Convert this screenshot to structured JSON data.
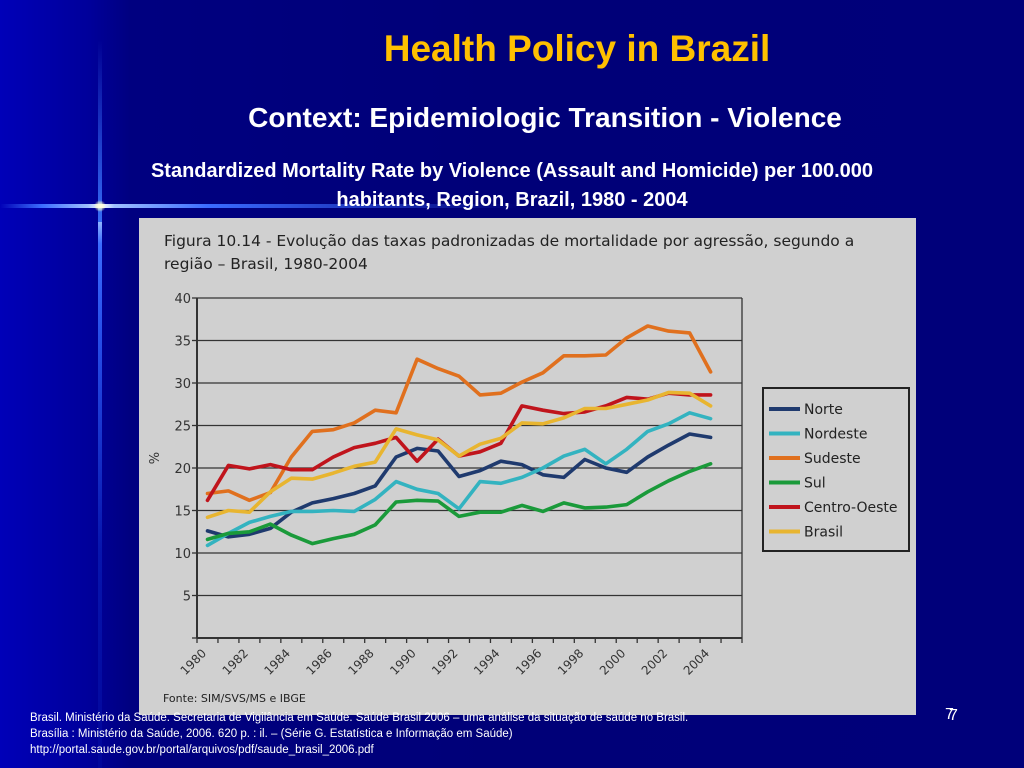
{
  "slide": {
    "title": "Health Policy in Brazil",
    "subtitle": "Context: Epidemiologic Transition - Violence",
    "caption_line1": "Standardized Mortality Rate by Violence (Assault and Homicide) per 100.000",
    "caption_line2": "habitants, Region, Brazil, 1980 - 2004",
    "page_number": "7",
    "footer": {
      "line1": "Brasil. Ministério da Saúde. Secretaria de Vigilância em Saúde. Saúde Brasil 2006 – uma análise da situação de saúde no Brasil.",
      "line2": "Brasília : Ministério da Saúde, 2006. 620 p. : il. – (Série G. Estatística e Informação em Saúde)",
      "line3": "http://portal.saude.gov.br/portal/arquivos/pdf/saude_brasil_2006.pdf"
    },
    "colors": {
      "background": "#00007a",
      "title": "#ffc000",
      "text": "#ffffff",
      "figure_bg": "#d0d0d0"
    }
  },
  "figure": {
    "title_line1": "Figura 10.14 - Evolução das taxas padronizadas de mortalidade por agressão, segundo a",
    "title_line2": "região – Brasil, 1980-2004",
    "source": "Fonte: SIM/SVS/MS e IBGE"
  },
  "chart_data": {
    "type": "line",
    "title": "Figura 10.14 - Evolução das taxas padronizadas de mortalidade por agressão, segundo a região – Brasil, 1980-2004",
    "xlabel": "",
    "ylabel": "%",
    "ylim": [
      0,
      40
    ],
    "yticks": [
      0,
      5,
      10,
      15,
      20,
      25,
      30,
      35,
      40
    ],
    "ytick_labels": [
      "",
      "5",
      "10",
      "15",
      "20",
      "25",
      "30",
      "35",
      "40"
    ],
    "xlim": [
      1980,
      2006
    ],
    "xtick_labels": [
      "1980",
      "1982",
      "1984",
      "1986",
      "1988",
      "1990",
      "1992",
      "1994",
      "1996",
      "1998",
      "2000",
      "2002",
      "2004"
    ],
    "grid": true,
    "legend_position": "right",
    "x": [
      1980,
      1981,
      1982,
      1983,
      1984,
      1985,
      1986,
      1987,
      1988,
      1989,
      1990,
      1991,
      1992,
      1993,
      1994,
      1995,
      1996,
      1997,
      1998,
      1999,
      2000,
      2001,
      2002,
      2003,
      2004
    ],
    "series": [
      {
        "name": "Norte",
        "color": "#1f3a6e",
        "values": [
          12.6,
          11.9,
          12.2,
          12.9,
          14.8,
          15.9,
          16.4,
          17.0,
          17.9,
          21.3,
          22.3,
          22.0,
          19.0,
          19.7,
          20.8,
          20.4,
          19.2,
          18.9,
          21.0,
          20.0,
          19.5,
          21.3,
          22.7,
          24.0,
          23.6
        ]
      },
      {
        "name": "Nordeste",
        "color": "#33b3c0",
        "values": [
          10.9,
          12.3,
          13.6,
          14.3,
          14.9,
          14.9,
          15.0,
          14.9,
          16.3,
          18.4,
          17.5,
          17.0,
          15.2,
          18.4,
          18.2,
          18.9,
          20.0,
          21.4,
          22.2,
          20.5,
          22.2,
          24.3,
          25.2,
          26.5,
          25.8
        ]
      },
      {
        "name": "Sudeste",
        "color": "#e0701e",
        "values": [
          17.0,
          17.3,
          16.2,
          17.1,
          21.3,
          24.3,
          24.5,
          25.3,
          26.8,
          26.5,
          32.8,
          31.7,
          30.8,
          28.6,
          28.8,
          30.1,
          31.2,
          33.2,
          33.2,
          33.3,
          35.3,
          36.7,
          36.1,
          35.9,
          31.3
        ]
      },
      {
        "name": "Sul",
        "color": "#1a9a3a",
        "values": [
          11.6,
          12.3,
          12.5,
          13.4,
          12.1,
          11.1,
          11.7,
          12.2,
          13.3,
          16.0,
          16.2,
          16.1,
          14.3,
          14.8,
          14.8,
          15.6,
          14.9,
          15.9,
          15.3,
          15.4,
          15.7,
          17.2,
          18.5,
          19.6,
          20.5
        ]
      },
      {
        "name": "Centro-Oeste",
        "color": "#c0141c",
        "values": [
          16.2,
          20.3,
          19.9,
          20.4,
          19.8,
          19.8,
          21.3,
          22.4,
          22.9,
          23.6,
          20.8,
          23.4,
          21.4,
          21.9,
          22.9,
          27.3,
          26.8,
          26.4,
          26.6,
          27.3,
          28.3,
          28.1,
          28.8,
          28.6,
          28.6
        ]
      },
      {
        "name": "Brasil",
        "color": "#e8b530",
        "values": [
          14.2,
          15.0,
          14.8,
          17.2,
          18.8,
          18.7,
          19.4,
          20.2,
          20.7,
          24.6,
          23.9,
          23.3,
          21.4,
          22.8,
          23.5,
          25.3,
          25.2,
          25.9,
          27.0,
          27.0,
          27.5,
          28.0,
          28.9,
          28.8,
          27.3
        ]
      }
    ]
  }
}
